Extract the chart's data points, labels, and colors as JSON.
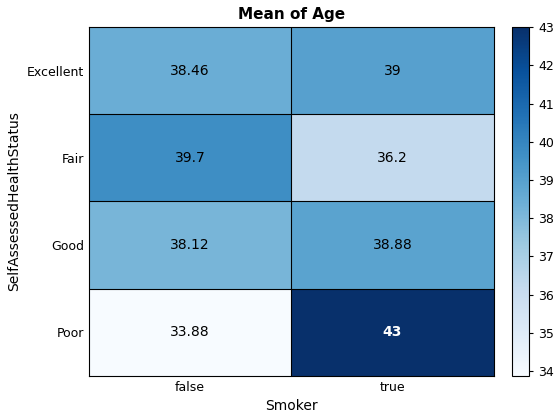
{
  "title": "Mean of Age",
  "xlabel": "Smoker",
  "ylabel": "SelfAssessedHealthStatus",
  "x_labels": [
    "false",
    "true"
  ],
  "y_labels": [
    "Excellent",
    "Fair",
    "Good",
    "Poor"
  ],
  "values": [
    [
      38.46,
      39.0
    ],
    [
      39.7,
      36.2
    ],
    [
      38.12,
      38.88
    ],
    [
      33.88,
      43.0
    ]
  ],
  "text_labels": [
    [
      "38.46",
      "39"
    ],
    [
      "39.7",
      "36.2"
    ],
    [
      "38.12",
      "38.88"
    ],
    [
      "33.88",
      "43"
    ]
  ],
  "vmin": 33.88,
  "vmax": 43.0,
  "colorbar_ticks": [
    34,
    35,
    36,
    37,
    38,
    39,
    40,
    41,
    42,
    43
  ],
  "cmap": "Blues",
  "title_fontsize": 11,
  "label_fontsize": 10,
  "tick_fontsize": 9,
  "cell_text_fontsize": 10,
  "white_threshold": 0.75
}
